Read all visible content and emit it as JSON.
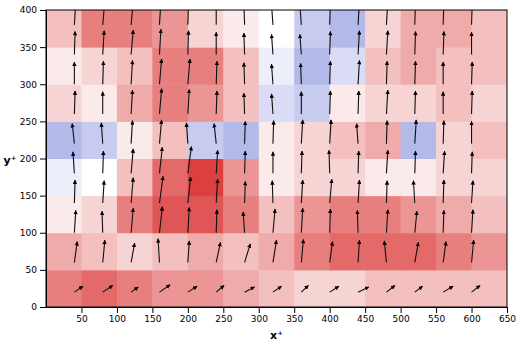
{
  "chart_data": {
    "type": "heatmap",
    "x_label": "x⁺",
    "y_label": "y⁺",
    "xlim": [
      0,
      650
    ],
    "ylim": [
      0,
      400
    ],
    "xticks": [
      50,
      100,
      150,
      200,
      250,
      300,
      350,
      400,
      450,
      500,
      550,
      600,
      650
    ],
    "yticks": [
      0,
      50,
      100,
      150,
      200,
      250,
      300,
      350,
      400
    ],
    "tick_labels": true,
    "x": [
      25,
      75,
      125,
      175,
      225,
      275,
      325,
      375,
      425,
      475,
      525,
      575,
      625
    ],
    "y": [
      25,
      75,
      125,
      175,
      225,
      275,
      325,
      375
    ],
    "cells": [
      [
        0.6,
        0.7,
        0.6,
        0.5,
        0.5,
        0.4,
        0.3,
        0.2,
        0.2,
        0.3,
        0.3,
        0.3,
        0.3
      ],
      [
        0.4,
        0.3,
        0.2,
        0.3,
        0.4,
        0.3,
        0.4,
        0.6,
        0.7,
        0.7,
        0.7,
        0.6,
        0.5
      ],
      [
        0.1,
        0.2,
        0.6,
        0.8,
        0.8,
        0.6,
        0.3,
        0.5,
        0.6,
        0.6,
        0.5,
        0.4,
        0.3
      ],
      [
        -0.1,
        0.0,
        0.3,
        0.7,
        0.9,
        0.5,
        0.1,
        0.2,
        0.2,
        0.1,
        0.1,
        0.2,
        0.2
      ],
      [
        -0.4,
        -0.3,
        0.1,
        0.3,
        -0.3,
        -0.4,
        0.1,
        0.2,
        0.3,
        0.4,
        -0.4,
        0.2,
        0.3
      ],
      [
        0.2,
        0.1,
        0.4,
        0.6,
        0.5,
        0.3,
        -0.2,
        -0.3,
        0.1,
        0.2,
        0.2,
        0.3,
        0.2
      ],
      [
        0.1,
        0.2,
        0.3,
        0.6,
        0.6,
        0.3,
        -0.1,
        -0.4,
        -0.2,
        0.3,
        0.4,
        0.3,
        0.3
      ],
      [
        0.3,
        0.6,
        0.6,
        0.5,
        0.2,
        0.1,
        0.0,
        -0.3,
        -0.4,
        0.2,
        0.4,
        0.4,
        0.3
      ]
    ],
    "zlim": [
      -1,
      1
    ],
    "vectors": {
      "x": [
        40,
        80,
        120,
        160,
        200,
        240,
        280,
        320,
        360,
        400,
        440,
        480,
        520,
        560,
        600
      ],
      "y": [
        20,
        60,
        100,
        140,
        180,
        220,
        260,
        300,
        340,
        380
      ],
      "u": [
        [
          12,
          14,
          10,
          15,
          13,
          11,
          14,
          12,
          10,
          13,
          15,
          12,
          11,
          14,
          12
        ],
        [
          4,
          3,
          5,
          -2,
          2,
          6,
          8,
          5,
          3,
          4,
          2,
          -3,
          5,
          4,
          3
        ],
        [
          2,
          -1,
          3,
          4,
          2,
          1,
          -2,
          3,
          2,
          1,
          -1,
          2,
          3,
          1,
          2
        ],
        [
          1,
          2,
          3,
          5,
          4,
          2,
          1,
          -1,
          2,
          3,
          2,
          1,
          -2,
          1,
          2
        ],
        [
          -2,
          1,
          3,
          4,
          5,
          2,
          1,
          0,
          1,
          -1,
          1,
          2,
          1,
          2,
          1
        ],
        [
          -3,
          -2,
          2,
          3,
          -2,
          -3,
          1,
          1,
          2,
          2,
          -2,
          1,
          2,
          1,
          0
        ],
        [
          1,
          0,
          2,
          3,
          2,
          1,
          -1,
          -2,
          0,
          1,
          1,
          2,
          1,
          0,
          1
        ],
        [
          0,
          1,
          2,
          3,
          3,
          1,
          -1,
          -2,
          -1,
          1,
          2,
          1,
          1,
          0,
          1
        ],
        [
          1,
          2,
          3,
          2,
          1,
          0,
          -1,
          -2,
          -2,
          1,
          2,
          2,
          1,
          1,
          0
        ],
        [
          2,
          3,
          3,
          2,
          1,
          0,
          -1,
          -2,
          -2,
          1,
          2,
          2,
          1,
          1,
          1
        ]
      ],
      "v": [
        [
          8,
          9,
          7,
          10,
          8,
          9,
          7,
          8,
          9,
          8,
          7,
          9,
          8,
          8,
          9
        ],
        [
          28,
          30,
          26,
          32,
          29,
          27,
          25,
          30,
          31,
          28,
          30,
          29,
          27,
          28,
          30
        ],
        [
          30,
          29,
          33,
          35,
          34,
          31,
          28,
          32,
          33,
          32,
          30,
          31,
          29,
          30,
          31
        ],
        [
          31,
          30,
          34,
          36,
          35,
          32,
          29,
          30,
          31,
          32,
          31,
          30,
          30,
          31,
          30
        ],
        [
          29,
          30,
          33,
          35,
          36,
          31,
          30,
          29,
          30,
          31,
          30,
          31,
          30,
          30,
          29
        ],
        [
          27,
          28,
          31,
          32,
          28,
          27,
          30,
          31,
          32,
          32,
          27,
          31,
          32,
          31,
          30
        ],
        [
          31,
          30,
          32,
          34,
          33,
          31,
          28,
          27,
          30,
          31,
          31,
          32,
          31,
          30,
          31
        ],
        [
          30,
          31,
          32,
          34,
          34,
          31,
          29,
          27,
          28,
          31,
          32,
          31,
          31,
          30,
          30
        ],
        [
          31,
          32,
          33,
          34,
          32,
          30,
          29,
          27,
          27,
          31,
          32,
          32,
          31,
          31,
          30
        ],
        [
          32,
          33,
          33,
          32,
          31,
          30,
          29,
          27,
          27,
          31,
          33,
          33,
          32,
          31,
          31
        ]
      ]
    }
  }
}
